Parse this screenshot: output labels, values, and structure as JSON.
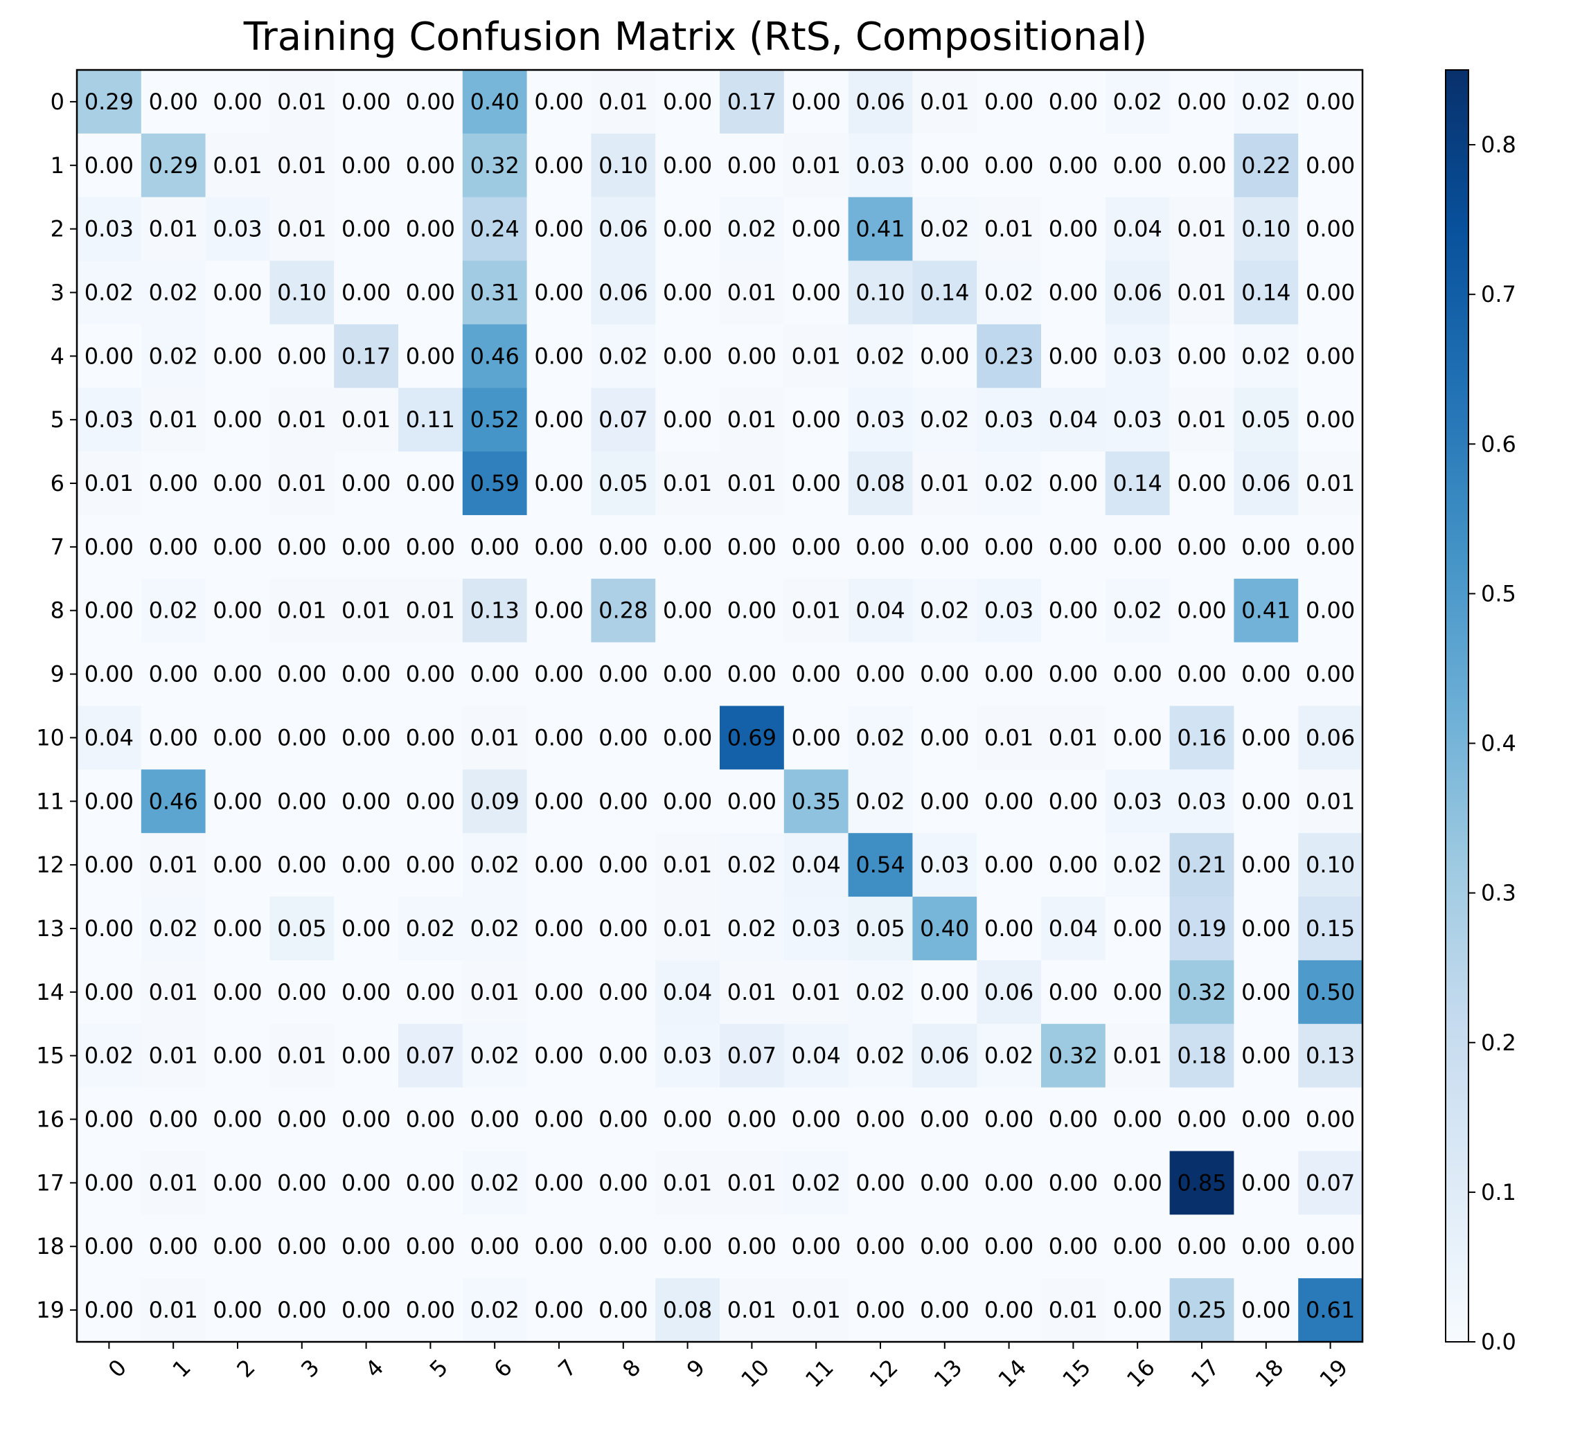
{
  "chart_data": {
    "type": "heatmap",
    "title": "Training Confusion Matrix (RtS, Compositional)",
    "xlabel": "",
    "ylabel": "",
    "x_tick_labels": [
      "0",
      "1",
      "2",
      "3",
      "4",
      "5",
      "6",
      "7",
      "8",
      "9",
      "10",
      "11",
      "12",
      "13",
      "14",
      "15",
      "16",
      "17",
      "18",
      "19"
    ],
    "y_tick_labels": [
      "0",
      "1",
      "2",
      "3",
      "4",
      "5",
      "6",
      "7",
      "8",
      "9",
      "10",
      "11",
      "12",
      "13",
      "14",
      "15",
      "16",
      "17",
      "18",
      "19"
    ],
    "colormap": "Blues",
    "colorbar": {
      "min": 0.0,
      "max": 0.85,
      "ticks": [
        0.0,
        0.1,
        0.2,
        0.3,
        0.4,
        0.5,
        0.6,
        0.7,
        0.8
      ],
      "tick_labels": [
        "0.0",
        "0.1",
        "0.2",
        "0.3",
        "0.4",
        "0.5",
        "0.6",
        "0.7",
        "0.8"
      ]
    },
    "value_format": "0.00",
    "values": [
      [
        0.29,
        0.0,
        0.0,
        0.01,
        0.0,
        0.0,
        0.4,
        0.0,
        0.01,
        0.0,
        0.17,
        0.0,
        0.06,
        0.01,
        0.0,
        0.0,
        0.02,
        0.0,
        0.02,
        0.0
      ],
      [
        0.0,
        0.29,
        0.01,
        0.01,
        0.0,
        0.0,
        0.32,
        0.0,
        0.1,
        0.0,
        0.0,
        0.01,
        0.03,
        0.0,
        0.0,
        0.0,
        0.0,
        0.0,
        0.22,
        0.0
      ],
      [
        0.03,
        0.01,
        0.03,
        0.01,
        0.0,
        0.0,
        0.24,
        0.0,
        0.06,
        0.0,
        0.02,
        0.0,
        0.41,
        0.02,
        0.01,
        0.0,
        0.04,
        0.01,
        0.1,
        0.0
      ],
      [
        0.02,
        0.02,
        0.0,
        0.1,
        0.0,
        0.0,
        0.31,
        0.0,
        0.06,
        0.0,
        0.01,
        0.0,
        0.1,
        0.14,
        0.02,
        0.0,
        0.06,
        0.01,
        0.14,
        0.0
      ],
      [
        0.0,
        0.02,
        0.0,
        0.0,
        0.17,
        0.0,
        0.46,
        0.0,
        0.02,
        0.0,
        0.0,
        0.01,
        0.02,
        0.0,
        0.23,
        0.0,
        0.03,
        0.0,
        0.02,
        0.0
      ],
      [
        0.03,
        0.01,
        0.0,
        0.01,
        0.01,
        0.11,
        0.52,
        0.0,
        0.07,
        0.0,
        0.01,
        0.0,
        0.03,
        0.02,
        0.03,
        0.04,
        0.03,
        0.01,
        0.05,
        0.0
      ],
      [
        0.01,
        0.0,
        0.0,
        0.01,
        0.0,
        0.0,
        0.59,
        0.0,
        0.05,
        0.01,
        0.01,
        0.0,
        0.08,
        0.01,
        0.02,
        0.0,
        0.14,
        0.0,
        0.06,
        0.01
      ],
      [
        0.0,
        0.0,
        0.0,
        0.0,
        0.0,
        0.0,
        0.0,
        0.0,
        0.0,
        0.0,
        0.0,
        0.0,
        0.0,
        0.0,
        0.0,
        0.0,
        0.0,
        0.0,
        0.0,
        0.0
      ],
      [
        0.0,
        0.02,
        0.0,
        0.01,
        0.01,
        0.01,
        0.13,
        0.0,
        0.28,
        0.0,
        0.0,
        0.01,
        0.04,
        0.02,
        0.03,
        0.0,
        0.02,
        0.0,
        0.41,
        0.0
      ],
      [
        0.0,
        0.0,
        0.0,
        0.0,
        0.0,
        0.0,
        0.0,
        0.0,
        0.0,
        0.0,
        0.0,
        0.0,
        0.0,
        0.0,
        0.0,
        0.0,
        0.0,
        0.0,
        0.0,
        0.0
      ],
      [
        0.04,
        0.0,
        0.0,
        0.0,
        0.0,
        0.0,
        0.01,
        0.0,
        0.0,
        0.0,
        0.69,
        0.0,
        0.02,
        0.0,
        0.01,
        0.01,
        0.0,
        0.16,
        0.0,
        0.06
      ],
      [
        0.0,
        0.46,
        0.0,
        0.0,
        0.0,
        0.0,
        0.09,
        0.0,
        0.0,
        0.0,
        0.0,
        0.35,
        0.02,
        0.0,
        0.0,
        0.0,
        0.03,
        0.03,
        0.0,
        0.01
      ],
      [
        0.0,
        0.01,
        0.0,
        0.0,
        0.0,
        0.0,
        0.02,
        0.0,
        0.0,
        0.01,
        0.02,
        0.04,
        0.54,
        0.03,
        0.0,
        0.0,
        0.02,
        0.21,
        0.0,
        0.1
      ],
      [
        0.0,
        0.02,
        0.0,
        0.05,
        0.0,
        0.02,
        0.02,
        0.0,
        0.0,
        0.01,
        0.02,
        0.03,
        0.05,
        0.4,
        0.0,
        0.04,
        0.0,
        0.19,
        0.0,
        0.15
      ],
      [
        0.0,
        0.01,
        0.0,
        0.0,
        0.0,
        0.0,
        0.01,
        0.0,
        0.0,
        0.04,
        0.01,
        0.01,
        0.02,
        0.0,
        0.06,
        0.0,
        0.0,
        0.32,
        0.0,
        0.5
      ],
      [
        0.02,
        0.01,
        0.0,
        0.01,
        0.0,
        0.07,
        0.02,
        0.0,
        0.0,
        0.03,
        0.07,
        0.04,
        0.02,
        0.06,
        0.02,
        0.32,
        0.01,
        0.18,
        0.0,
        0.13
      ],
      [
        0.0,
        0.0,
        0.0,
        0.0,
        0.0,
        0.0,
        0.0,
        0.0,
        0.0,
        0.0,
        0.0,
        0.0,
        0.0,
        0.0,
        0.0,
        0.0,
        0.0,
        0.0,
        0.0,
        0.0
      ],
      [
        0.0,
        0.01,
        0.0,
        0.0,
        0.0,
        0.0,
        0.02,
        0.0,
        0.0,
        0.01,
        0.01,
        0.02,
        0.0,
        0.0,
        0.0,
        0.0,
        0.0,
        0.85,
        0.0,
        0.07
      ],
      [
        0.0,
        0.0,
        0.0,
        0.0,
        0.0,
        0.0,
        0.0,
        0.0,
        0.0,
        0.0,
        0.0,
        0.0,
        0.0,
        0.0,
        0.0,
        0.0,
        0.0,
        0.0,
        0.0,
        0.0
      ],
      [
        0.0,
        0.01,
        0.0,
        0.0,
        0.0,
        0.0,
        0.02,
        0.0,
        0.0,
        0.08,
        0.01,
        0.01,
        0.0,
        0.0,
        0.0,
        0.01,
        0.0,
        0.25,
        0.0,
        0.61
      ]
    ]
  }
}
